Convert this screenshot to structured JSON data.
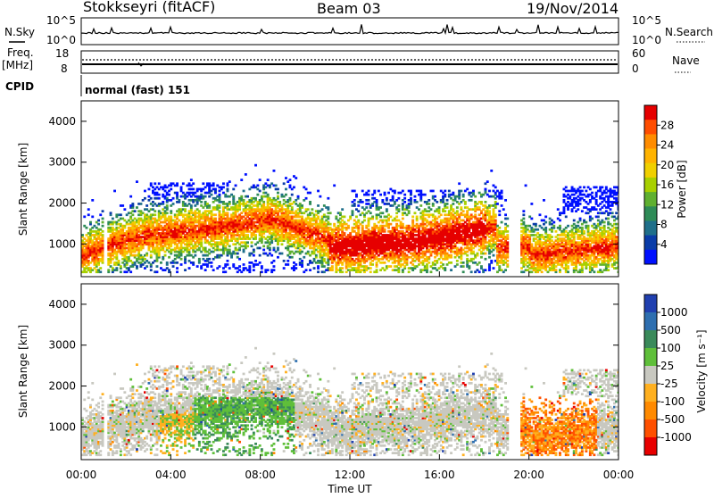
{
  "header": {
    "title": "Stokkseyri (fitACF)",
    "beam": "Beam 03",
    "date": "19/Nov/2014"
  },
  "top_panels": {
    "nsky_label": "N.Sky",
    "nsearch_label": "N.Search",
    "nsky_ticks": [
      "10^5",
      "10^0"
    ],
    "nsearch_ticks": [
      "10^5",
      "10^0"
    ],
    "freq_label_1": "Freq.",
    "freq_label_2": "[MHz]",
    "freq_ticks": [
      "18",
      "8"
    ],
    "nave_label": "Nave",
    "nave_ticks": [
      "60",
      "0"
    ],
    "cpid_label": "CPID",
    "cpid_text": "normal (fast) 151"
  },
  "colorbars": {
    "power": {
      "label": "Power [dB]",
      "ticks": [
        "28",
        "24",
        "20",
        "16",
        "12",
        "8",
        "4"
      ],
      "colors": [
        "#e60000",
        "#ff4d00",
        "#ff8c00",
        "#ffb300",
        "#f0d000",
        "#a8d000",
        "#5fb030",
        "#2e8b57",
        "#1f6f8a",
        "#0a3ca8",
        "#0010ff"
      ]
    },
    "velocity": {
      "label": "Velocity [m s⁻¹]",
      "ticks": [
        "1000",
        "500",
        "100",
        "25",
        "-25",
        "-100",
        "-500",
        "-1000"
      ],
      "colors": [
        "#2040b0",
        "#2e6fb0",
        "#3a8a5a",
        "#5fbf3a",
        "#c8c8c0",
        "#ffb020",
        "#ff8a00",
        "#ff5000",
        "#e80000"
      ]
    }
  },
  "chart_data": [
    {
      "type": "heatmap",
      "title": "Power [dB]",
      "ylabel": "Slant Range [km]",
      "ylim": [
        200,
        4500
      ],
      "yticks": [
        "1000",
        "2000",
        "3000",
        "4000"
      ],
      "xlabel": "Time UT",
      "xticks": [
        "00:00",
        "04:00",
        "08:00",
        "12:00",
        "16:00",
        "20:00",
        "00:00"
      ],
      "colorbar_range": [
        0,
        30
      ]
    },
    {
      "type": "heatmap",
      "title": "Velocity [m s⁻¹]",
      "ylabel": "Slant Range [km]",
      "ylim": [
        200,
        4500
      ],
      "yticks": [
        "1000",
        "2000",
        "3000",
        "4000"
      ],
      "xlabel": "Time UT",
      "xticks": [
        "00:00",
        "04:00",
        "08:00",
        "12:00",
        "16:00",
        "20:00",
        "00:00"
      ],
      "colorbar_range": [
        -1000,
        1000
      ]
    }
  ]
}
